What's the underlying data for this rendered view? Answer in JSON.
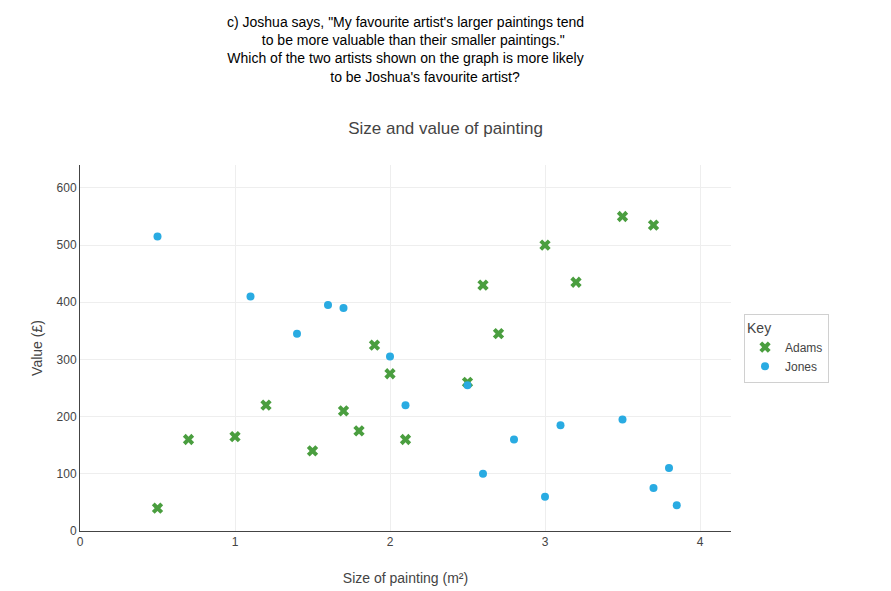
{
  "chart_data": {
    "type": "scatter",
    "title": "Size and value of painting",
    "annotations": [
      "c) Joshua says, \"My favourite artist's larger paintings tend\n    to be more valuable than their smaller paintings.\"\nWhich of the two artists shown on the graph is more likely\n          to be Joshua's favourite artist?"
    ],
    "xlabel": "Size of painting (m²)",
    "ylabel": "Value (£)",
    "xlim": [
      0,
      4.2
    ],
    "ylim": [
      0,
      640
    ],
    "xticks": [
      0,
      1,
      2,
      3,
      4
    ],
    "yticks": [
      0,
      100,
      200,
      300,
      400,
      500,
      600
    ],
    "grid": true,
    "legend": "right",
    "legend_title": "Key",
    "series": [
      {
        "name": "Adams",
        "color": "#4a9e3f",
        "marker": "x",
        "x": [
          0.5,
          0.7,
          1.0,
          1.2,
          1.5,
          1.7,
          1.8,
          1.9,
          2.0,
          2.1,
          2.5,
          2.6,
          2.7,
          3.0,
          3.2,
          3.5,
          3.7
        ],
        "values": [
          40,
          160,
          165,
          220,
          140,
          210,
          175,
          325,
          275,
          160,
          260,
          430,
          345,
          500,
          435,
          550,
          535
        ]
      },
      {
        "name": "Jones",
        "color": "#29abe2",
        "marker": "circle",
        "x": [
          0.5,
          1.1,
          1.4,
          1.6,
          1.7,
          2.0,
          2.1,
          2.5,
          2.6,
          2.8,
          3.0,
          3.1,
          3.5,
          3.7,
          3.8,
          3.85
        ],
        "values": [
          515,
          410,
          345,
          395,
          390,
          305,
          220,
          255,
          100,
          160,
          60,
          185,
          195,
          75,
          110,
          45
        ]
      }
    ]
  }
}
